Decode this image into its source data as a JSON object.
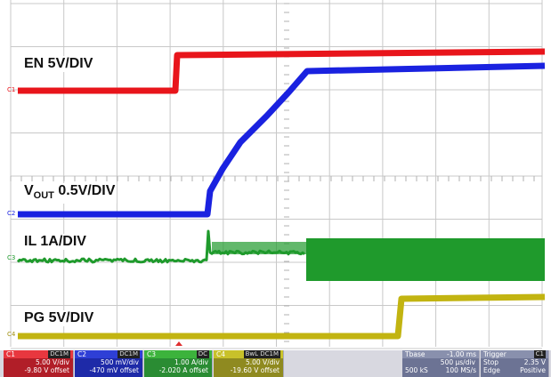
{
  "labels": {
    "en": "EN 5V/DIV",
    "vout_v": "V",
    "vout_sub": "OUT",
    "vout_rest": " 0.5V/DIV",
    "il": "IL 1A/DIV",
    "pg": "PG 5V/DIV"
  },
  "channel_markers": [
    "C1",
    "C2",
    "C3",
    "C4"
  ],
  "channels": [
    {
      "name": "C1",
      "tag": "DC1M",
      "scale": "5.00 V/div",
      "offset": "-9.80 V offset",
      "color": "#e8373f"
    },
    {
      "name": "C2",
      "tag": "DC1M",
      "scale": "500 mV/div",
      "offset": "-470 mV offset",
      "color": "#2e3fd6"
    },
    {
      "name": "C3",
      "tag": "DC",
      "scale": "1.00 A/div",
      "offset": "-2.020 A offset",
      "color": "#3cb33c"
    },
    {
      "name": "C4",
      "tag": "BwL DC1M",
      "scale": "5.00 V/div",
      "offset": "-19.60 V offset",
      "color": "#c8c12a"
    }
  ],
  "timebase": {
    "label": "Tbase",
    "delay": "-1.00 ms",
    "scale": "500 µs/div",
    "samples": "500 kS",
    "rate": "100 MS/s"
  },
  "trigger": {
    "label": "Trigger",
    "channel": "C1",
    "mode": "Stop",
    "level": "2.35 V",
    "type": "Edge",
    "slope": "Positive"
  },
  "colors": {
    "en": "#e8151b",
    "vout": "#1a22e0",
    "il": "#1f9a2c",
    "pg": "#c2b411",
    "grid": "#c8c8c8"
  }
}
